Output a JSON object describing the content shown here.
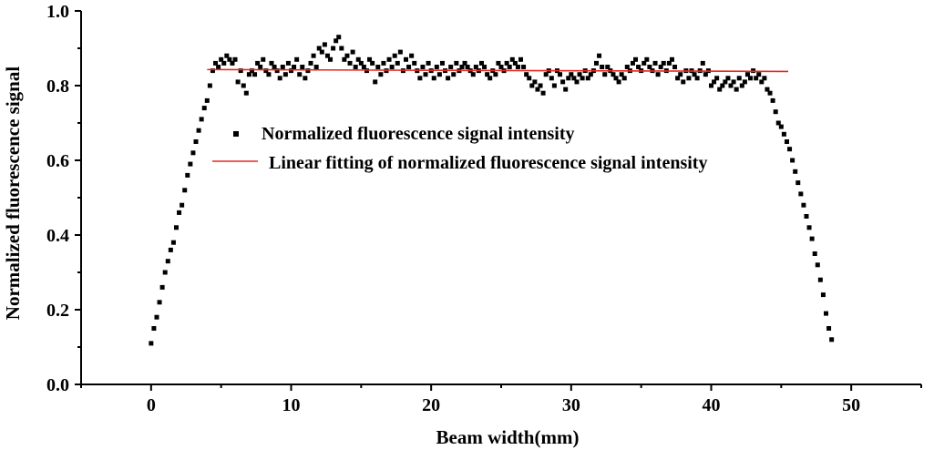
{
  "chart_data": {
    "type": "scatter",
    "xlabel": "Beam width(mm)",
    "ylabel": "Normalized fluorescence signal",
    "xlim": [
      -5,
      55
    ],
    "ylim": [
      0,
      1.0
    ],
    "x_ticks": [
      0,
      10,
      20,
      30,
      40,
      50
    ],
    "y_ticks": [
      0.0,
      0.2,
      0.4,
      0.6,
      0.8,
      1.0
    ],
    "x_tick_labels": [
      "0",
      "10",
      "20",
      "30",
      "40",
      "50"
    ],
    "y_tick_labels": [
      "0.0",
      "0.2",
      "0.4",
      "0.6",
      "0.8",
      "1.0"
    ],
    "grid": false,
    "legend_position": "center",
    "series": [
      {
        "name": "Normalized fluorescence signal intensity",
        "marker": "square",
        "color": "#000000",
        "x_start": 0,
        "x_step": 0.2,
        "values": [
          0.11,
          0.15,
          0.18,
          0.22,
          0.26,
          0.3,
          0.33,
          0.36,
          0.38,
          0.42,
          0.46,
          0.48,
          0.52,
          0.56,
          0.59,
          0.62,
          0.65,
          0.68,
          0.71,
          0.74,
          0.76,
          0.8,
          0.84,
          0.86,
          0.85,
          0.87,
          0.86,
          0.88,
          0.87,
          0.86,
          0.87,
          0.81,
          0.84,
          0.8,
          0.78,
          0.83,
          0.84,
          0.83,
          0.86,
          0.85,
          0.87,
          0.84,
          0.83,
          0.86,
          0.85,
          0.84,
          0.82,
          0.85,
          0.83,
          0.86,
          0.84,
          0.85,
          0.87,
          0.83,
          0.85,
          0.82,
          0.84,
          0.86,
          0.88,
          0.85,
          0.9,
          0.89,
          0.91,
          0.88,
          0.87,
          0.9,
          0.92,
          0.93,
          0.9,
          0.87,
          0.88,
          0.86,
          0.89,
          0.85,
          0.87,
          0.86,
          0.85,
          0.84,
          0.87,
          0.86,
          0.81,
          0.85,
          0.83,
          0.86,
          0.84,
          0.87,
          0.85,
          0.88,
          0.86,
          0.89,
          0.84,
          0.87,
          0.85,
          0.88,
          0.86,
          0.84,
          0.82,
          0.85,
          0.83,
          0.86,
          0.84,
          0.82,
          0.85,
          0.83,
          0.86,
          0.84,
          0.82,
          0.85,
          0.83,
          0.86,
          0.84,
          0.85,
          0.86,
          0.85,
          0.84,
          0.83,
          0.85,
          0.84,
          0.86,
          0.85,
          0.83,
          0.82,
          0.84,
          0.83,
          0.86,
          0.85,
          0.84,
          0.86,
          0.85,
          0.87,
          0.86,
          0.85,
          0.87,
          0.85,
          0.83,
          0.82,
          0.8,
          0.81,
          0.79,
          0.8,
          0.78,
          0.83,
          0.84,
          0.82,
          0.8,
          0.84,
          0.83,
          0.81,
          0.79,
          0.82,
          0.83,
          0.82,
          0.81,
          0.83,
          0.82,
          0.84,
          0.82,
          0.83,
          0.84,
          0.86,
          0.88,
          0.85,
          0.83,
          0.85,
          0.84,
          0.83,
          0.82,
          0.81,
          0.83,
          0.82,
          0.85,
          0.84,
          0.86,
          0.87,
          0.85,
          0.84,
          0.86,
          0.87,
          0.85,
          0.84,
          0.86,
          0.83,
          0.85,
          0.86,
          0.84,
          0.86,
          0.87,
          0.85,
          0.82,
          0.83,
          0.81,
          0.84,
          0.82,
          0.84,
          0.83,
          0.82,
          0.84,
          0.86,
          0.83,
          0.84,
          0.8,
          0.81,
          0.82,
          0.79,
          0.8,
          0.81,
          0.82,
          0.8,
          0.81,
          0.79,
          0.82,
          0.8,
          0.81,
          0.83,
          0.82,
          0.84,
          0.82,
          0.83,
          0.81,
          0.82,
          0.79,
          0.78,
          0.76,
          0.73,
          0.7,
          0.69,
          0.67,
          0.65,
          0.63,
          0.6,
          0.57,
          0.54,
          0.51,
          0.48,
          0.45,
          0.42,
          0.39,
          0.35,
          0.32,
          0.28,
          0.24,
          0.19,
          0.15,
          0.12
        ]
      },
      {
        "name": "Linear fitting of normalized fluorescence signal intensity",
        "type": "line",
        "color": "#e8281f",
        "x": [
          4,
          45.5
        ],
        "y": [
          0.843,
          0.838
        ]
      }
    ]
  }
}
